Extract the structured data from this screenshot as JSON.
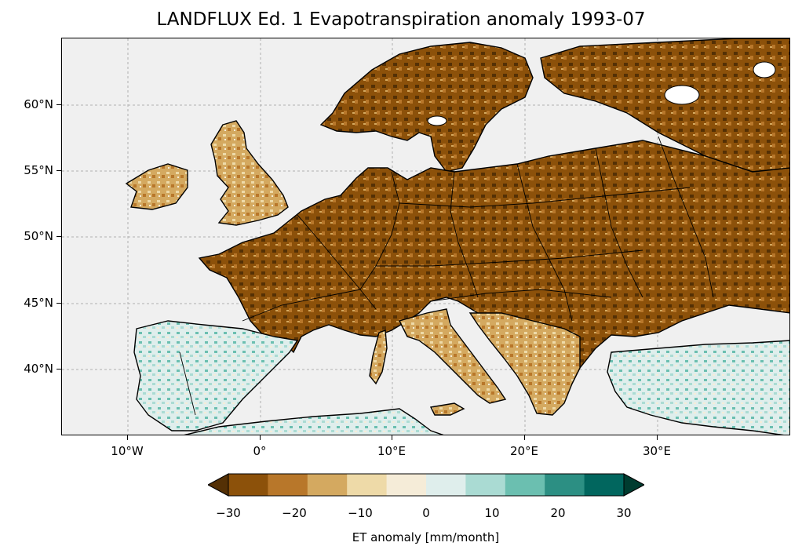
{
  "title": "LANDFLUX Ed. 1 Evapotranspiration anomaly 1993-07",
  "map": {
    "lat_ticks": [
      "60°N",
      "55°N",
      "50°N",
      "45°N",
      "40°N"
    ],
    "lon_ticks": [
      "10°W",
      "0°",
      "10°E",
      "20°E",
      "30°E"
    ],
    "ocean_color": "#f0f0f0",
    "border_color": "#000000"
  },
  "colorbar": {
    "label": "ET anomaly [mm/month]",
    "ticks": [
      "−30",
      "−20",
      "−10",
      "0",
      "10",
      "20",
      "30"
    ],
    "colors": [
      "#543005",
      "#8c510a",
      "#b8772a",
      "#d4a960",
      "#eedaa8",
      "#f5ecd8",
      "#dfeeec",
      "#aadbd3",
      "#6bbfb0",
      "#2c8f83",
      "#01665e",
      "#003c30"
    ],
    "extend": "both"
  }
}
